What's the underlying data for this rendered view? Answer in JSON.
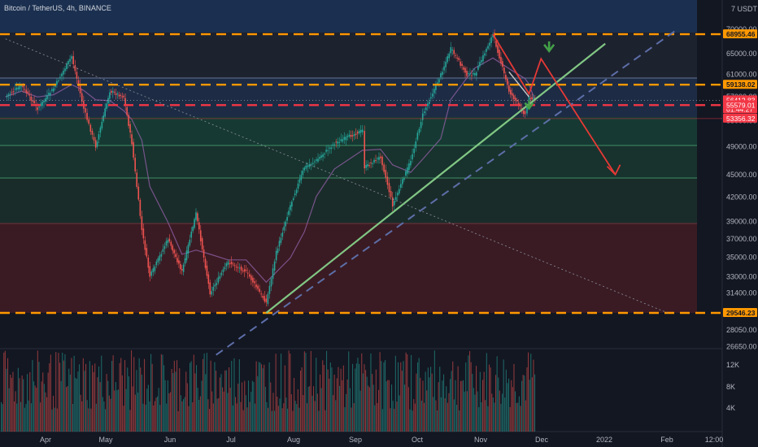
{
  "header": {
    "symbol": "Bitcoin / TetherUS, 4h, BINANCE"
  },
  "colors": {
    "background": "#131722",
    "up": "#26a69a",
    "down": "#ef5350",
    "support_orange": "#ff9800",
    "support_red": "#f23645",
    "trend_green": "#81c784",
    "trend_dashed": "#5d6ea8",
    "arrow_red": "#e53935",
    "arrow_green": "#43a047"
  },
  "chart_data": {
    "type": "line",
    "symbol": "Bitcoin / TetherUS",
    "interval": "4h",
    "exchange": "BINANCE",
    "price_scale": {
      "unit_label": "USDT",
      "log": true,
      "range": [
        26000,
        78000
      ],
      "ticks": [
        "70000.00",
        "65000.00",
        "61000.00",
        "57000.00",
        "53000.00",
        "49000.00",
        "45000.00",
        "42000.00",
        "39000.00",
        "37000.00",
        "35000.00",
        "33000.00",
        "31400.00",
        "29546.23",
        "28050.00",
        "26650.00"
      ]
    },
    "time_axis": {
      "labels": [
        "Apr",
        "May",
        "Jun",
        "Jul",
        "Aug",
        "Sep",
        "Oct",
        "Nov",
        "Dec",
        "2022",
        "Feb",
        "12:00"
      ]
    },
    "price_path": {
      "x": [
        "Mar 12",
        "Mar 20",
        "Mar 28",
        "Apr 5",
        "Apr 14",
        "Apr 20",
        "Apr 26",
        "May 3",
        "May 10",
        "May 14",
        "May 19",
        "May 23",
        "Jun 1",
        "Jun 8",
        "Jun 15",
        "Jun 22",
        "Jul 1",
        "Jul 10",
        "Jul 20",
        "Jul 25",
        "Aug 1",
        "Aug 8",
        "Aug 14",
        "Aug 23",
        "Sep 6",
        "Sep 7",
        "Sep 15",
        "Sep 21",
        "Sep 30",
        "Oct 6",
        "Oct 15",
        "Oct 20",
        "Oct 28",
        "Nov 1",
        "Nov 10",
        "Nov 18",
        "Nov 26",
        "Nov 28",
        "Dec 1"
      ],
      "y": [
        57000,
        59000,
        55000,
        58500,
        64500,
        55000,
        49000,
        58000,
        57000,
        49500,
        38000,
        33000,
        37000,
        33500,
        40000,
        31400,
        34500,
        33500,
        30500,
        35500,
        41000,
        46000,
        47000,
        49500,
        51500,
        46000,
        47500,
        41000,
        47000,
        54000,
        61000,
        66000,
        61000,
        61000,
        68955,
        58000,
        54000,
        57000,
        56412
      ]
    },
    "levels": [
      {
        "price": 68955.46,
        "label": "68955.46",
        "style": "dashed",
        "color": "orange"
      },
      {
        "price": 59138.02,
        "label": "59138.02",
        "style": "dashed",
        "color": "orange"
      },
      {
        "price": 56412.83,
        "label": "56412.83",
        "style": "price",
        "color": "red"
      },
      {
        "price": 55579.01,
        "label": "55579.01",
        "style": "dashed",
        "color": "red"
      },
      {
        "price": 53356.32,
        "label": "53356.32",
        "style": "solid",
        "color": "red"
      },
      {
        "price": 29546.23,
        "label": "29546.23",
        "style": "dashed",
        "color": "orange"
      }
    ],
    "countdown": "01:44:27",
    "volume_scale": {
      "ticks": [
        "12K",
        "8K",
        "4K"
      ]
    },
    "annotations": [
      {
        "type": "trendline",
        "from": [
          "Jul 20",
          29546
        ],
        "to": [
          "Jan 5",
          67000
        ],
        "style": "solid"
      },
      {
        "type": "trendline",
        "from": [
          "Jun 25",
          26000
        ],
        "to": [
          "Feb 10",
          70000
        ],
        "style": "dashed"
      },
      {
        "type": "trendline",
        "from": [
          "Mar 12",
          68000
        ],
        "to": [
          "Feb 5",
          29546
        ],
        "style": "dotted"
      },
      {
        "type": "arrow",
        "direction": "down",
        "color": "red",
        "from": [
          "Dec 4",
          64000
        ],
        "to": [
          "Jan 10",
          45000
        ]
      },
      {
        "type": "arrow",
        "direction": "up",
        "color": "green",
        "from": [
          "Nov 28",
          55000
        ],
        "to": [
          "Dec 3",
          59000
        ]
      }
    ]
  }
}
